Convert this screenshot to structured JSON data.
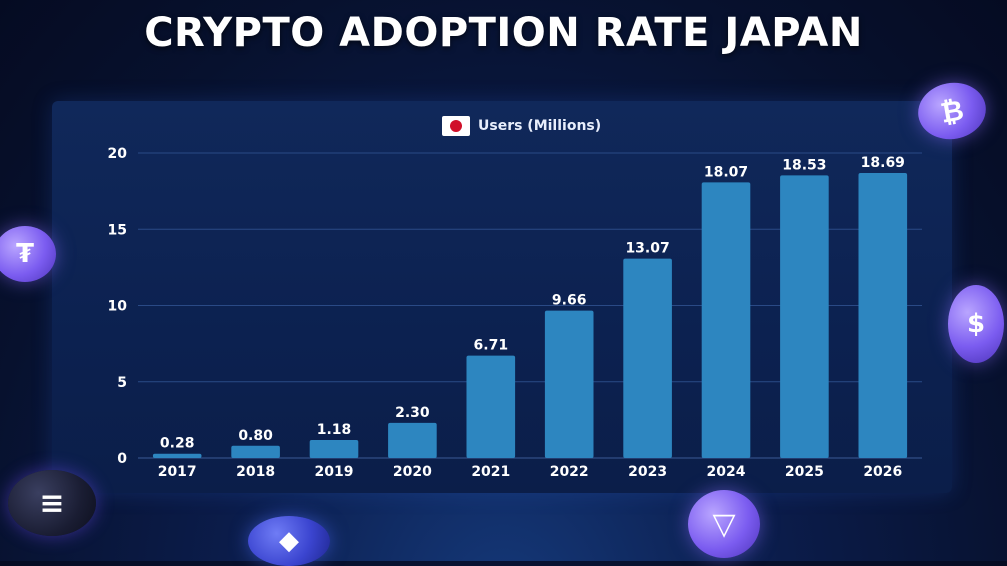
{
  "title": "CRYPTO ADOPTION RATE JAPAN",
  "legend": {
    "label": "Users (Millions)",
    "icon": "japan-flag-icon"
  },
  "colors": {
    "bar": "#2d86c0",
    "grid": "#2a4a86",
    "text": "#ffffff"
  },
  "icons": [
    "bitcoin-coin-icon",
    "tether-coin-icon",
    "usdc-coin-icon",
    "solana-coin-icon",
    "ethereum-coin-icon",
    "tron-coin-icon"
  ],
  "chart_data": {
    "type": "bar",
    "title": "CRYPTO ADOPTION RATE JAPAN",
    "xlabel": "",
    "ylabel": "",
    "categories": [
      "2017",
      "2018",
      "2019",
      "2020",
      "2021",
      "2022",
      "2023",
      "2024",
      "2025",
      "2026"
    ],
    "series": [
      {
        "name": "Users (Millions)",
        "values": [
          0.28,
          0.8,
          1.18,
          2.3,
          6.71,
          9.66,
          13.07,
          18.07,
          18.53,
          18.69
        ]
      }
    ],
    "value_labels": [
      "0.28",
      "0.80",
      "1.18",
      "2.30",
      "6.71",
      "9.66",
      "13.07",
      "18.07",
      "18.53",
      "18.69"
    ],
    "ylim": [
      0,
      20
    ],
    "yticks": [
      "0",
      "5",
      "10",
      "15",
      "20"
    ],
    "grid": true,
    "legend_position": "top-center"
  }
}
